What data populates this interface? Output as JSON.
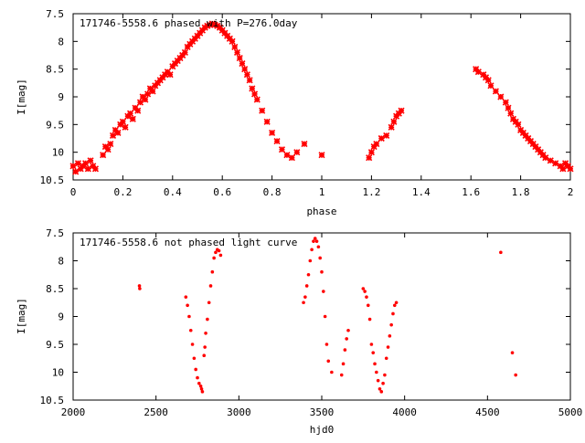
{
  "chart_data": [
    {
      "type": "scatter",
      "title": "171746-5558.6 phased with P=276.0day",
      "xlabel": "phase",
      "ylabel": "I[mag]",
      "xlim": [
        0,
        2
      ],
      "ylim": [
        10.5,
        7.5
      ],
      "y_inverted": true,
      "x_ticks": [
        "0",
        "0.2",
        "0.4",
        "0.6",
        "0.8",
        "1",
        "1.2",
        "1.4",
        "1.6",
        "1.8",
        "2"
      ],
      "y_ticks": [
        "7.5",
        "8",
        "8.5",
        "9",
        "9.5",
        "10",
        "10.5"
      ],
      "marker": "star",
      "color": "#ff0000",
      "grid": false,
      "series": [
        {
          "x": [
            0.0,
            0.01,
            0.02,
            0.03,
            0.04,
            0.05,
            0.06,
            0.07,
            0.08,
            0.09,
            0.12,
            0.13,
            0.14,
            0.15,
            0.16,
            0.17,
            0.18,
            0.19,
            0.2,
            0.21,
            0.22,
            0.23,
            0.24,
            0.25,
            0.26,
            0.27,
            0.28,
            0.29,
            0.3,
            0.31,
            0.32,
            0.33,
            0.34,
            0.35,
            0.36,
            0.37,
            0.38,
            0.39,
            0.4,
            0.41,
            0.42,
            0.43,
            0.44,
            0.45,
            0.46,
            0.47,
            0.48,
            0.49,
            0.5,
            0.51,
            0.52,
            0.53,
            0.54,
            0.55,
            0.56,
            0.57,
            0.58,
            0.59,
            0.6,
            0.61,
            0.62,
            0.63,
            0.64,
            0.65,
            0.66,
            0.67,
            0.68,
            0.69,
            0.7,
            0.71,
            0.72,
            0.73,
            0.74,
            0.76,
            0.78,
            0.8,
            0.82,
            0.84,
            0.86,
            0.88,
            0.9,
            0.93,
            1.0,
            1.19,
            1.2,
            1.21,
            1.22,
            1.24,
            1.26,
            1.28,
            1.29,
            1.3,
            1.31,
            1.32,
            1.62,
            1.63,
            1.65,
            1.66,
            1.67,
            1.68,
            1.7,
            1.72,
            1.74,
            1.75,
            1.76,
            1.77,
            1.78,
            1.79,
            1.8,
            1.81,
            1.82,
            1.83,
            1.84,
            1.85,
            1.86,
            1.87,
            1.88,
            1.89,
            1.9,
            1.92,
            1.94,
            1.96,
            1.97,
            1.98,
            1.99,
            2.0
          ],
          "y": [
            10.25,
            10.35,
            10.2,
            10.3,
            10.25,
            10.2,
            10.3,
            10.15,
            10.25,
            10.3,
            10.05,
            9.9,
            9.95,
            9.85,
            9.7,
            9.6,
            9.65,
            9.5,
            9.45,
            9.55,
            9.35,
            9.3,
            9.4,
            9.2,
            9.25,
            9.1,
            9.0,
            9.05,
            8.95,
            8.85,
            8.9,
            8.8,
            8.75,
            8.7,
            8.65,
            8.6,
            8.55,
            8.6,
            8.45,
            8.4,
            8.35,
            8.3,
            8.25,
            8.2,
            8.1,
            8.05,
            8.0,
            7.95,
            7.9,
            7.85,
            7.8,
            7.75,
            7.72,
            7.7,
            7.68,
            7.7,
            7.72,
            7.75,
            7.8,
            7.85,
            7.9,
            7.95,
            8.0,
            8.1,
            8.2,
            8.3,
            8.4,
            8.5,
            8.6,
            8.7,
            8.85,
            8.95,
            9.05,
            9.25,
            9.45,
            9.65,
            9.8,
            9.95,
            10.05,
            10.1,
            10.0,
            9.85,
            10.05,
            10.1,
            10.0,
            9.9,
            9.85,
            9.75,
            9.7,
            9.55,
            9.45,
            9.35,
            9.3,
            9.25,
            8.5,
            8.55,
            8.6,
            8.65,
            8.7,
            8.8,
            8.9,
            9.0,
            9.1,
            9.2,
            9.3,
            9.4,
            9.45,
            9.5,
            9.6,
            9.65,
            9.7,
            9.75,
            9.8,
            9.85,
            9.9,
            9.95,
            10.0,
            10.05,
            10.1,
            10.15,
            10.2,
            10.25,
            10.3,
            10.2,
            10.25,
            10.3
          ]
        }
      ]
    },
    {
      "type": "scatter",
      "title": "171746-5558.6 not phased light curve",
      "xlabel": "hjd0",
      "ylabel": "I[mag]",
      "xlim": [
        2000,
        5000
      ],
      "ylim": [
        10.5,
        7.5
      ],
      "y_inverted": true,
      "x_ticks": [
        "2000",
        "2500",
        "3000",
        "3500",
        "4000",
        "4500",
        "5000"
      ],
      "y_ticks": [
        "7.5",
        "8",
        "8.5",
        "9",
        "9.5",
        "10",
        "10.5"
      ],
      "marker": "dot",
      "color": "#ff0000",
      "grid": false,
      "series": [
        {
          "x": [
            2400,
            2402,
            2680,
            2690,
            2700,
            2710,
            2720,
            2730,
            2740,
            2750,
            2760,
            2770,
            2775,
            2780,
            2790,
            2795,
            2800,
            2810,
            2820,
            2830,
            2840,
            2850,
            2860,
            2870,
            2880,
            2890,
            3390,
            3400,
            3410,
            3420,
            3430,
            3440,
            3450,
            3460,
            3470,
            3480,
            3490,
            3500,
            3510,
            3520,
            3530,
            3540,
            3560,
            3620,
            3630,
            3640,
            3650,
            3660,
            3750,
            3760,
            3770,
            3780,
            3790,
            3800,
            3810,
            3820,
            3830,
            3840,
            3850,
            3860,
            3870,
            3880,
            3890,
            3900,
            3910,
            3920,
            3930,
            3940,
            3950,
            4580,
            4650,
            4670
          ],
          "y": [
            8.45,
            8.5,
            8.65,
            8.8,
            9.0,
            9.25,
            9.5,
            9.75,
            9.95,
            10.1,
            10.2,
            10.25,
            10.3,
            10.35,
            9.7,
            9.55,
            9.3,
            9.05,
            8.75,
            8.45,
            8.2,
            7.95,
            7.85,
            7.8,
            7.82,
            7.9,
            8.75,
            8.65,
            8.45,
            8.25,
            8.0,
            7.8,
            7.65,
            7.6,
            7.65,
            7.75,
            7.95,
            8.2,
            8.55,
            9.0,
            9.5,
            9.8,
            10.0,
            10.05,
            9.85,
            9.6,
            9.4,
            9.25,
            8.5,
            8.55,
            8.65,
            8.8,
            9.05,
            9.5,
            9.65,
            9.85,
            10.0,
            10.15,
            10.3,
            10.35,
            10.2,
            10.05,
            9.75,
            9.55,
            9.35,
            9.15,
            8.95,
            8.8,
            8.75,
            7.85,
            9.65,
            10.05
          ]
        }
      ]
    }
  ]
}
